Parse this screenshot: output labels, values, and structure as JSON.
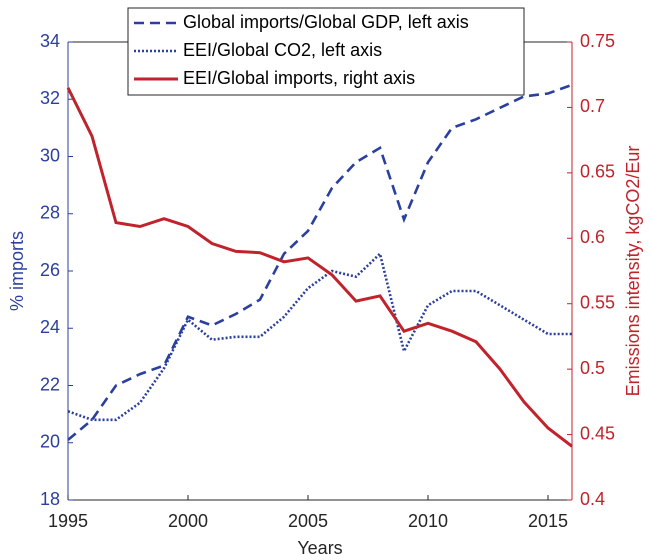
{
  "chart_data": {
    "type": "line",
    "x_label": "Years",
    "y_label": "% imports",
    "y2_label": "Emissions intensity, kgCO2/Eur",
    "x": [
      1995,
      1996,
      1997,
      1998,
      1999,
      2000,
      2001,
      2002,
      2003,
      2004,
      2005,
      2006,
      2007,
      2008,
      2009,
      2010,
      2011,
      2012,
      2013,
      2014,
      2015,
      2016
    ],
    "series": [
      {
        "name": "Global imports/Global GDP, left axis",
        "color": "#2b3f9e",
        "style": "dashed",
        "axis": "y",
        "values": [
          20.1,
          20.8,
          22.0,
          22.4,
          22.7,
          24.4,
          24.1,
          24.5,
          25.0,
          26.6,
          27.4,
          28.9,
          29.8,
          30.3,
          27.8,
          29.8,
          31.0,
          31.3,
          31.7,
          32.1,
          32.2,
          32.5
        ]
      },
      {
        "name": "EEI/Global CO2, left axis",
        "color": "#2b3f9e",
        "style": "dotted",
        "axis": "y",
        "values": [
          21.1,
          20.8,
          20.8,
          21.4,
          22.6,
          24.3,
          23.6,
          23.7,
          23.7,
          24.4,
          25.4,
          26.0,
          25.8,
          26.6,
          23.2,
          24.8,
          25.3,
          25.3,
          24.8,
          24.3,
          23.8,
          23.8
        ]
      },
      {
        "name": "EEI/Global imports, right axis",
        "color": "#c0232b",
        "style": "solid",
        "axis": "y2",
        "values": [
          0.715,
          0.678,
          0.612,
          0.609,
          0.615,
          0.609,
          0.596,
          0.59,
          0.589,
          0.582,
          0.585,
          0.572,
          0.552,
          0.556,
          0.529,
          0.535,
          0.529,
          0.521,
          0.5,
          0.475,
          0.455,
          0.441
        ]
      }
    ],
    "xlim": [
      1995,
      2016
    ],
    "xticks": [
      1995,
      2000,
      2005,
      2010,
      2015
    ],
    "ylim": [
      18,
      34
    ],
    "yticks": [
      18,
      20,
      22,
      24,
      26,
      28,
      30,
      32,
      34
    ],
    "y2lim": [
      0.4,
      0.75
    ],
    "y2ticks": [
      0.4,
      0.45,
      0.5,
      0.55,
      0.6,
      0.65,
      0.7,
      0.75
    ],
    "legend": "top"
  }
}
